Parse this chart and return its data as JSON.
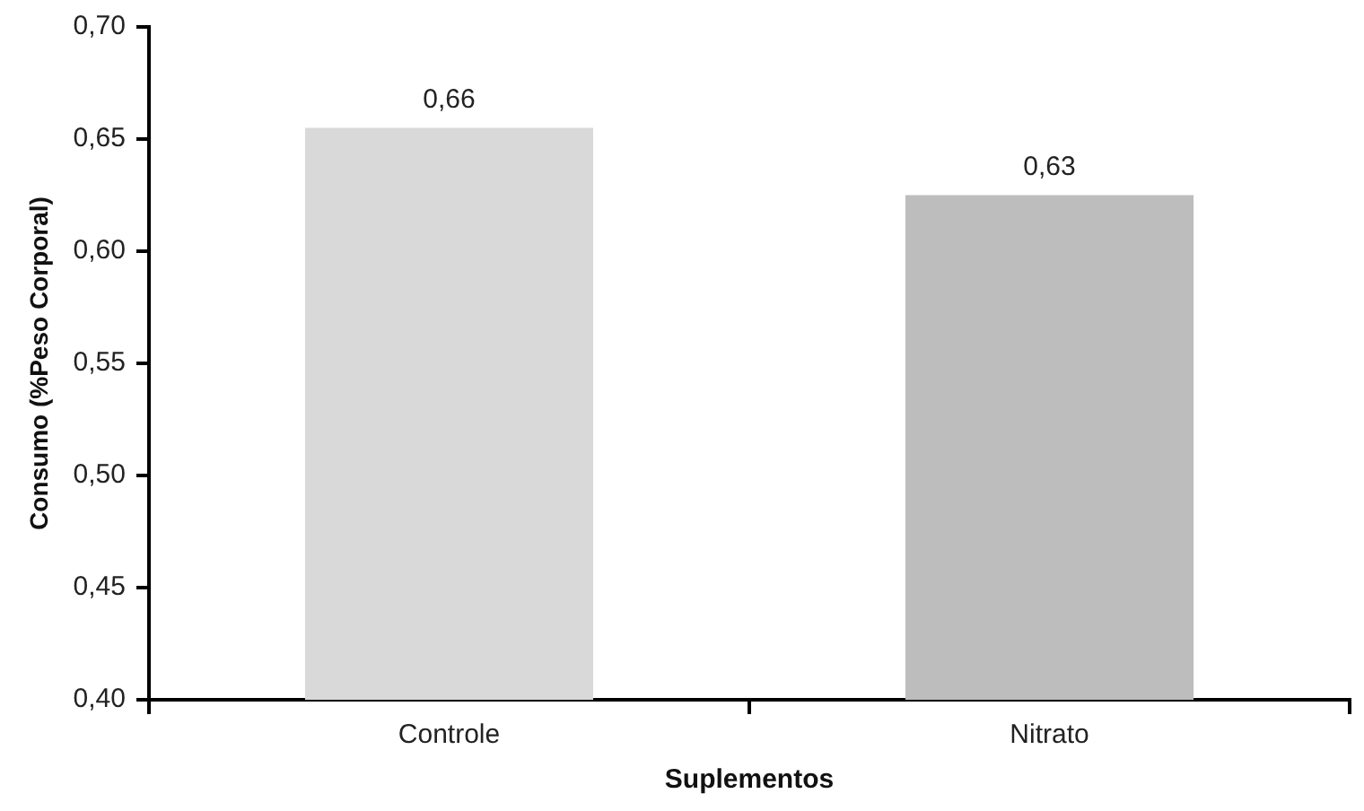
{
  "chart_data": {
    "type": "bar",
    "xlabel": "Suplementos",
    "ylabel": "Consumo (%Peso Corporal)",
    "categories": [
      "Controle",
      "Nitrato"
    ],
    "values": [
      0.655,
      0.625
    ],
    "colors": [
      "#d9d9d9",
      "#bdbdbd"
    ],
    "value_labels": [
      "0,66",
      "0,63"
    ],
    "ylim": [
      0.4,
      0.7
    ],
    "yticks": [
      {
        "value": 0.4,
        "label": "0,40"
      },
      {
        "value": 0.45,
        "label": "0,45"
      },
      {
        "value": 0.5,
        "label": "0,50"
      },
      {
        "value": 0.55,
        "label": "0,55"
      },
      {
        "value": 0.6,
        "label": "0,60"
      },
      {
        "value": 0.65,
        "label": "0,65"
      },
      {
        "value": 0.7,
        "label": "0,70"
      }
    ],
    "grid": false,
    "legend": false
  }
}
